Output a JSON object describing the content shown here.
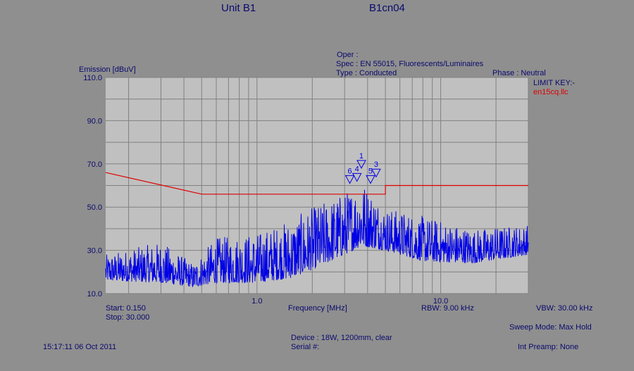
{
  "header": {
    "unit": "Unit B1",
    "test_id": "B1cn04"
  },
  "info": {
    "oper": "Oper :",
    "spec": "Spec : EN 55015, Fluorescents/Luminaires",
    "type": "Type : Conducted",
    "phase": "Phase : Neutral",
    "limit_key_label": "LIMIT KEY:-",
    "limit_file": "en15cq.llc"
  },
  "footer": {
    "start": "Start: 0.150",
    "stop": "Stop: 30.000",
    "rbw": "RBW: 9.00 kHz",
    "vbw": "VBW: 30.00 kHz",
    "sweep_mode": "Sweep Mode: Max Hold",
    "device": "Device : 18W, 1200mm, clear",
    "serial": "Serial #:",
    "timestamp": "15:17:11 06 Oct 2011",
    "int_preamp": "Int Preamp: None"
  },
  "colors": {
    "background": "#8f8f8f",
    "plot_area": "#c0c0c0",
    "grid": "#808080",
    "trace": "#0000e6",
    "limit": "#e00000",
    "text": "#0a0a6e"
  },
  "chart_data": {
    "type": "line",
    "title": "",
    "xlabel": "Frequency [MHz]",
    "ylabel": "Emission [dBuV]",
    "xscale": "log",
    "xlim": [
      0.15,
      30
    ],
    "ylim": [
      10,
      110
    ],
    "y_ticks": [
      "110.0",
      "90.0",
      "70.0",
      "50.0",
      "30.0",
      "10.0"
    ],
    "x_tick_labels": [
      {
        "x": 1,
        "label": "1.0"
      },
      {
        "x": 10,
        "label": "10.0"
      }
    ],
    "grid": true,
    "limit_line": {
      "name": "en15cq.llc",
      "points": [
        [
          0.15,
          66
        ],
        [
          0.5,
          56
        ],
        [
          5,
          56
        ],
        [
          5,
          60
        ],
        [
          30,
          60
        ]
      ]
    },
    "markers": [
      {
        "label": "1",
        "freq": 3.7,
        "level": 68
      },
      {
        "label": "3",
        "freq": 4.45,
        "level": 64
      },
      {
        "label": "4",
        "freq": 3.5,
        "level": 62
      },
      {
        "label": "5",
        "freq": 4.15,
        "level": 61
      },
      {
        "label": "6",
        "freq": 3.2,
        "level": 61
      }
    ],
    "trace_envelope": [
      {
        "freq": 0.15,
        "floor": 16,
        "peak": 28
      },
      {
        "freq": 0.3,
        "floor": 15,
        "peak": 34
      },
      {
        "freq": 0.45,
        "floor": 13,
        "peak": 24
      },
      {
        "freq": 0.6,
        "floor": 15,
        "peak": 36
      },
      {
        "freq": 1.0,
        "floor": 15,
        "peak": 38
      },
      {
        "freq": 1.5,
        "floor": 17,
        "peak": 44
      },
      {
        "freq": 2.0,
        "floor": 21,
        "peak": 50
      },
      {
        "freq": 3.0,
        "floor": 28,
        "peak": 57
      },
      {
        "freq": 3.7,
        "floor": 32,
        "peak": 63
      },
      {
        "freq": 5.0,
        "floor": 30,
        "peak": 50
      },
      {
        "freq": 8.0,
        "floor": 25,
        "peak": 46
      },
      {
        "freq": 15.0,
        "floor": 24,
        "peak": 40
      },
      {
        "freq": 30.0,
        "floor": 28,
        "peak": 42
      }
    ]
  }
}
